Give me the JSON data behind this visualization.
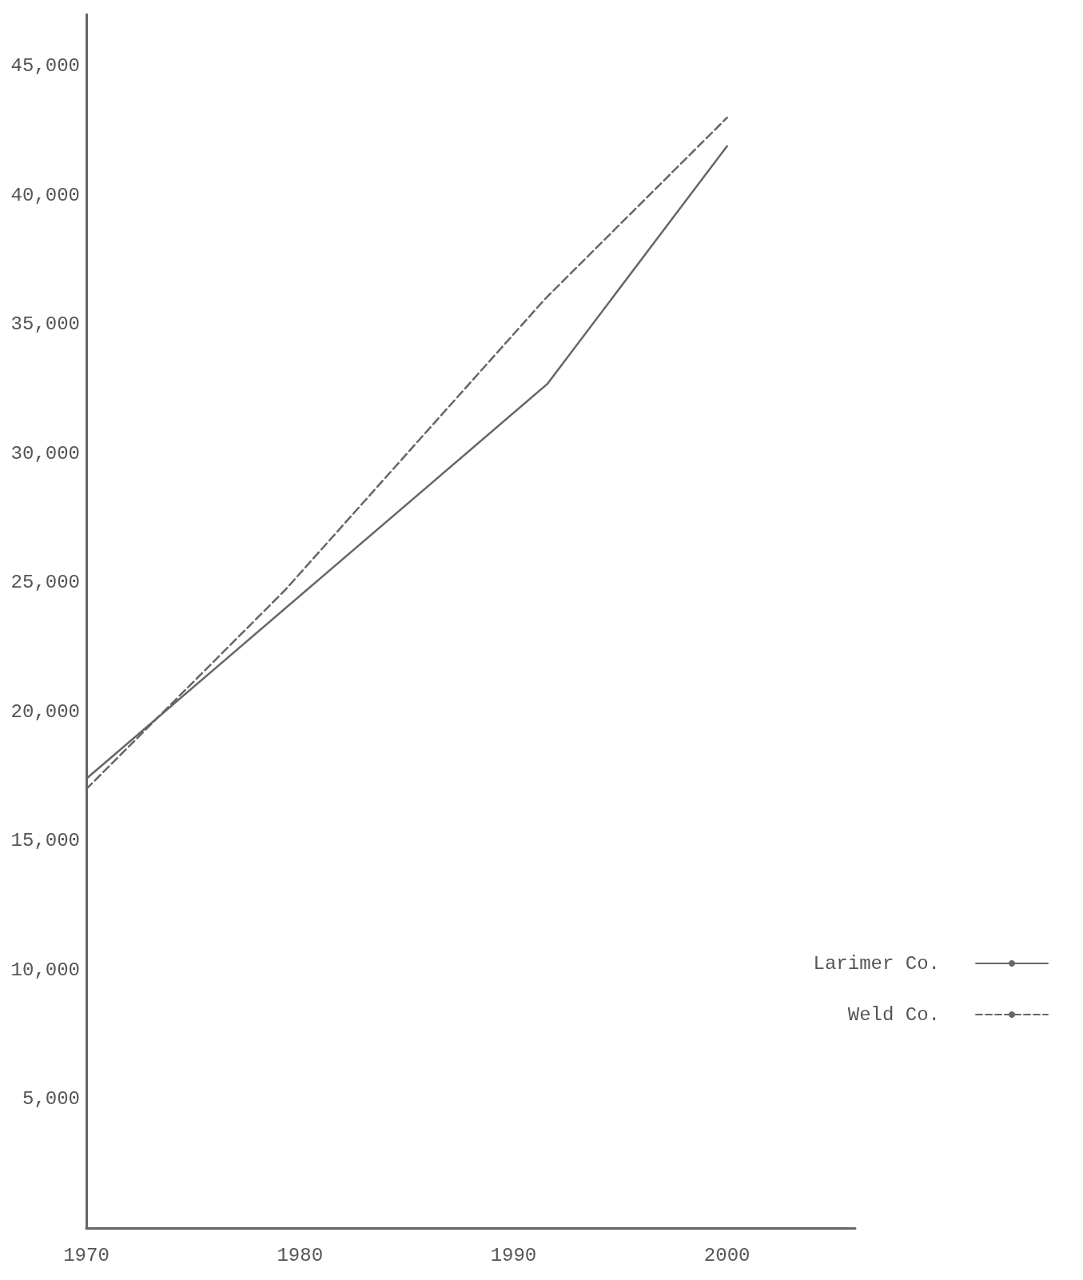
{
  "chart_data": {
    "type": "line",
    "xlim": [
      1970,
      2006
    ],
    "xticks": [
      1970,
      1980,
      1990,
      2000
    ],
    "ylim": [
      0,
      47000
    ],
    "yticks": [
      {
        "value": 5000,
        "label": "5,000"
      },
      {
        "value": 10000,
        "label": "10,000"
      },
      {
        "value": 15000,
        "label": "15,000"
      },
      {
        "value": 20000,
        "label": "20,000"
      },
      {
        "value": 25000,
        "label": "25,000"
      },
      {
        "value": 30000,
        "label": "30,000"
      },
      {
        "value": 35000,
        "label": "35,000"
      },
      {
        "value": 40000,
        "label": "40,000"
      },
      {
        "value": 45000,
        "label": "45,000"
      }
    ],
    "series": [
      {
        "name": "Larimer Co.",
        "color": "#666666",
        "line_style": "solid",
        "x": [
          1970,
          1991.6,
          2000
        ],
        "values": [
          17400,
          32700,
          41900
        ]
      },
      {
        "name": "Weld Co.",
        "color": "#666666",
        "line_style": "dashed",
        "x": [
          1970,
          1979.3,
          1991.5,
          2000
        ],
        "values": [
          17000,
          24700,
          36000,
          43000
        ]
      }
    ],
    "grid": false,
    "legend": "right",
    "marker": "none"
  }
}
